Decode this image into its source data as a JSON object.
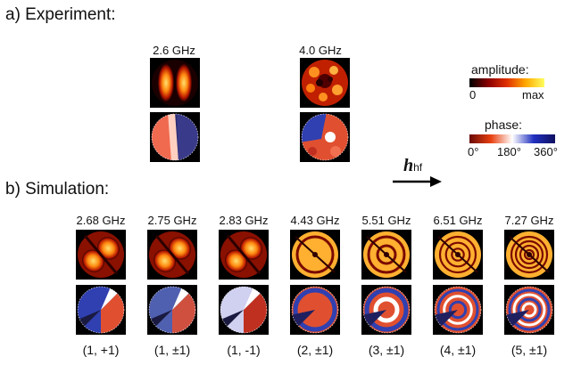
{
  "experiment": {
    "title": "a) Experiment:",
    "columns": [
      {
        "freq": "2.6 GHz"
      },
      {
        "freq": "4.0 GHz"
      }
    ]
  },
  "legend": {
    "amplitude": {
      "title": "amplitude:",
      "min": "0",
      "max": "max",
      "colors": [
        "#000000",
        "#8a0000",
        "#e03000",
        "#ffa800",
        "#ffff60"
      ]
    },
    "phase": {
      "title": "phase:",
      "ticks": [
        "0°",
        "180°",
        "360°"
      ],
      "colors": [
        "#6a0a05",
        "#e84010",
        "#ffffff",
        "#2030c0",
        "#101060"
      ]
    }
  },
  "field": {
    "label_main": "h",
    "label_sub": "hf"
  },
  "simulation": {
    "title": "b) Simulation:",
    "columns": [
      {
        "freq": "2.68 GHz",
        "mode": "(1, +1)"
      },
      {
        "freq": "2.75 GHz",
        "mode": "(1, ±1)"
      },
      {
        "freq": "2.83 GHz",
        "mode": "(1, -1)"
      },
      {
        "freq": "4.43 GHz",
        "mode": "(2, ±1)"
      },
      {
        "freq": "5.51 GHz",
        "mode": "(3, ±1)"
      },
      {
        "freq": "6.51 GHz",
        "mode": "(4, ±1)"
      },
      {
        "freq": "7.27 GHz",
        "mode": "(5, ±1)"
      }
    ]
  }
}
